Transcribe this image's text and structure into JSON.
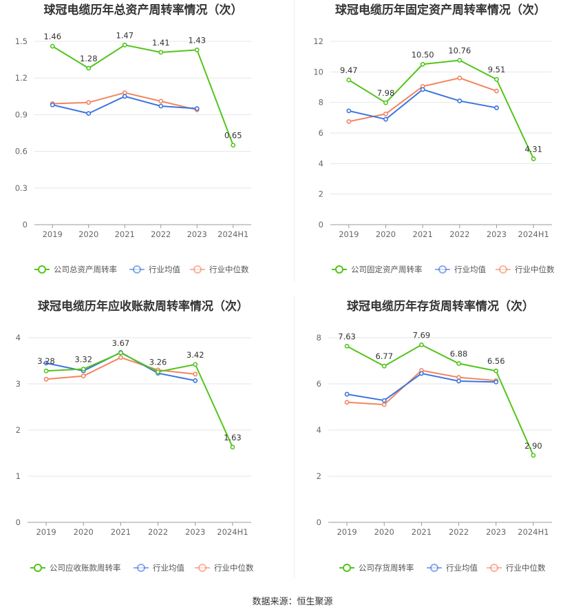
{
  "colors": {
    "company": "#52c41a",
    "avg": "#3b74de",
    "median": "#f4845f",
    "grid": "#e6e6e6"
  },
  "source": "数据来源：恒生聚源",
  "chart_data": [
    {
      "type": "line",
      "title": "球冠电缆历年总资产周转率情况（次）",
      "categories": [
        "2019",
        "2020",
        "2021",
        "2022",
        "2023",
        "2024H1"
      ],
      "ylim": [
        0,
        1.5
      ],
      "yticks": [
        "0",
        "0.3",
        "0.6",
        "0.9",
        "1.2",
        "1.5"
      ],
      "series": [
        {
          "name": "公司总资产周转率",
          "values": [
            1.46,
            1.28,
            1.47,
            1.41,
            1.43,
            0.65
          ],
          "labels": [
            "1.46",
            "1.28",
            "1.47",
            "1.41",
            "1.43",
            "0.65"
          ]
        },
        {
          "name": "行业均值",
          "values": [
            0.98,
            0.91,
            1.05,
            0.97,
            0.95,
            null
          ]
        },
        {
          "name": "行业中位数",
          "values": [
            0.99,
            1.0,
            1.08,
            1.01,
            0.94,
            null
          ]
        }
      ]
    },
    {
      "type": "line",
      "title": "球冠电缆历年固定资产周转率情况（次）",
      "categories": [
        "2019",
        "2020",
        "2021",
        "2022",
        "2023",
        "2024H1"
      ],
      "ylim": [
        0,
        12
      ],
      "yticks": [
        "0",
        "2",
        "4",
        "6",
        "8",
        "10",
        "12"
      ],
      "series": [
        {
          "name": "公司固定资产周转率",
          "values": [
            9.47,
            7.98,
            10.5,
            10.76,
            9.51,
            4.31
          ],
          "labels": [
            "9.47",
            "7.98",
            "10.50",
            "10.76",
            "9.51",
            "4.31"
          ]
        },
        {
          "name": "行业均值",
          "values": [
            7.45,
            6.9,
            8.85,
            8.1,
            7.65,
            null
          ]
        },
        {
          "name": "行业中位数",
          "values": [
            6.75,
            7.25,
            9.05,
            9.6,
            8.75,
            null
          ]
        }
      ]
    },
    {
      "type": "line",
      "title": "球冠电缆历年应收账款周转率情况（次）",
      "categories": [
        "2019",
        "2020",
        "2021",
        "2022",
        "2023",
        "2024H1"
      ],
      "ylim": [
        0,
        4
      ],
      "yticks": [
        "0",
        "1",
        "2",
        "3",
        "4"
      ],
      "series": [
        {
          "name": "公司应收账款周转率",
          "values": [
            3.28,
            3.32,
            3.67,
            3.26,
            3.42,
            1.63
          ],
          "labels": [
            "3.28",
            "3.32",
            "3.67",
            "3.26",
            "3.42",
            "1.63"
          ]
        },
        {
          "name": "行业均值",
          "values": [
            3.45,
            3.28,
            3.68,
            3.23,
            3.07,
            null
          ]
        },
        {
          "name": "行业中位数",
          "values": [
            3.1,
            3.17,
            3.57,
            3.3,
            3.21,
            null
          ]
        }
      ]
    },
    {
      "type": "line",
      "title": "球冠电缆历年存货周转率情况（次）",
      "categories": [
        "2019",
        "2020",
        "2021",
        "2022",
        "2023",
        "2024H1"
      ],
      "ylim": [
        0,
        8
      ],
      "yticks": [
        "0",
        "2",
        "4",
        "6",
        "8"
      ],
      "series": [
        {
          "name": "公司存货周转率",
          "values": [
            7.63,
            6.77,
            7.69,
            6.88,
            6.56,
            2.9
          ],
          "labels": [
            "7.63",
            "6.77",
            "7.69",
            "6.88",
            "6.56",
            "2.90"
          ]
        },
        {
          "name": "行业均值",
          "values": [
            5.55,
            5.28,
            6.45,
            6.12,
            6.08,
            null
          ]
        },
        {
          "name": "行业中位数",
          "values": [
            5.2,
            5.1,
            6.58,
            6.28,
            6.14,
            null
          ]
        }
      ]
    }
  ]
}
